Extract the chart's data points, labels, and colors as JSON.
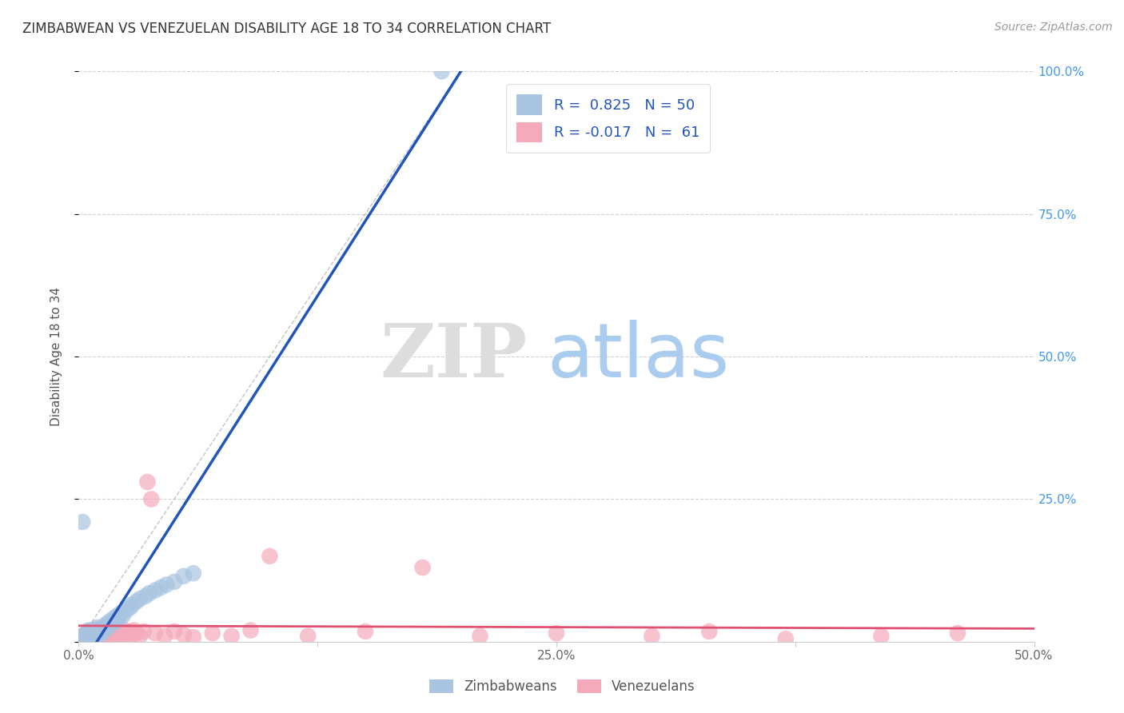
{
  "title": "ZIMBABWEAN VS VENEZUELAN DISABILITY AGE 18 TO 34 CORRELATION CHART",
  "source": "Source: ZipAtlas.com",
  "ylabel": "Disability Age 18 to 34",
  "xlim": [
    0.0,
    0.5
  ],
  "ylim": [
    0.0,
    1.0
  ],
  "zimbabwean_color": "#A8C4E0",
  "venezuelan_color": "#F4AABB",
  "zimbabwean_R": 0.825,
  "zimbabwean_N": 50,
  "venezuelan_R": -0.017,
  "venezuelan_N": 61,
  "regression_blue_color": "#2255BB",
  "regression_pink_color": "#E05070",
  "watermark_ZIP_color": "#DDDDDD",
  "watermark_atlas_color": "#AACCEE",
  "legend_text_color": "#2255BB",
  "zim_x": [
    0.001,
    0.002,
    0.002,
    0.003,
    0.003,
    0.003,
    0.004,
    0.004,
    0.005,
    0.005,
    0.005,
    0.006,
    0.006,
    0.007,
    0.007,
    0.008,
    0.008,
    0.009,
    0.009,
    0.01,
    0.01,
    0.011,
    0.012,
    0.013,
    0.013,
    0.014,
    0.015,
    0.016,
    0.017,
    0.018,
    0.019,
    0.02,
    0.021,
    0.022,
    0.023,
    0.025,
    0.027,
    0.028,
    0.03,
    0.032,
    0.035,
    0.037,
    0.04,
    0.043,
    0.046,
    0.05,
    0.055,
    0.06,
    0.002,
    0.19
  ],
  "zim_y": [
    0.005,
    0.005,
    0.01,
    0.005,
    0.008,
    0.012,
    0.005,
    0.015,
    0.005,
    0.01,
    0.02,
    0.008,
    0.015,
    0.01,
    0.02,
    0.008,
    0.018,
    0.012,
    0.022,
    0.01,
    0.025,
    0.02,
    0.015,
    0.025,
    0.018,
    0.03,
    0.025,
    0.035,
    0.03,
    0.04,
    0.035,
    0.045,
    0.04,
    0.05,
    0.045,
    0.055,
    0.06,
    0.065,
    0.07,
    0.075,
    0.08,
    0.085,
    0.09,
    0.095,
    0.1,
    0.105,
    0.115,
    0.12,
    0.21,
    1.0
  ],
  "ven_x": [
    0.001,
    0.002,
    0.003,
    0.003,
    0.004,
    0.004,
    0.005,
    0.005,
    0.006,
    0.006,
    0.007,
    0.007,
    0.008,
    0.008,
    0.009,
    0.009,
    0.01,
    0.01,
    0.011,
    0.012,
    0.013,
    0.014,
    0.015,
    0.016,
    0.017,
    0.018,
    0.019,
    0.02,
    0.021,
    0.022,
    0.023,
    0.024,
    0.025,
    0.026,
    0.027,
    0.028,
    0.029,
    0.03,
    0.032,
    0.034,
    0.036,
    0.038,
    0.04,
    0.045,
    0.05,
    0.055,
    0.06,
    0.07,
    0.08,
    0.09,
    0.1,
    0.12,
    0.15,
    0.18,
    0.21,
    0.25,
    0.3,
    0.33,
    0.37,
    0.42,
    0.46
  ],
  "ven_y": [
    0.005,
    0.008,
    0.005,
    0.012,
    0.008,
    0.015,
    0.01,
    0.018,
    0.008,
    0.015,
    0.01,
    0.02,
    0.008,
    0.018,
    0.005,
    0.015,
    0.01,
    0.02,
    0.015,
    0.01,
    0.018,
    0.012,
    0.008,
    0.015,
    0.01,
    0.02,
    0.008,
    0.018,
    0.012,
    0.015,
    0.01,
    0.02,
    0.015,
    0.008,
    0.018,
    0.012,
    0.02,
    0.015,
    0.01,
    0.018,
    0.28,
    0.25,
    0.015,
    0.01,
    0.018,
    0.012,
    0.008,
    0.015,
    0.01,
    0.02,
    0.15,
    0.01,
    0.018,
    0.13,
    0.01,
    0.015,
    0.01,
    0.018,
    0.005,
    0.01,
    0.015
  ]
}
